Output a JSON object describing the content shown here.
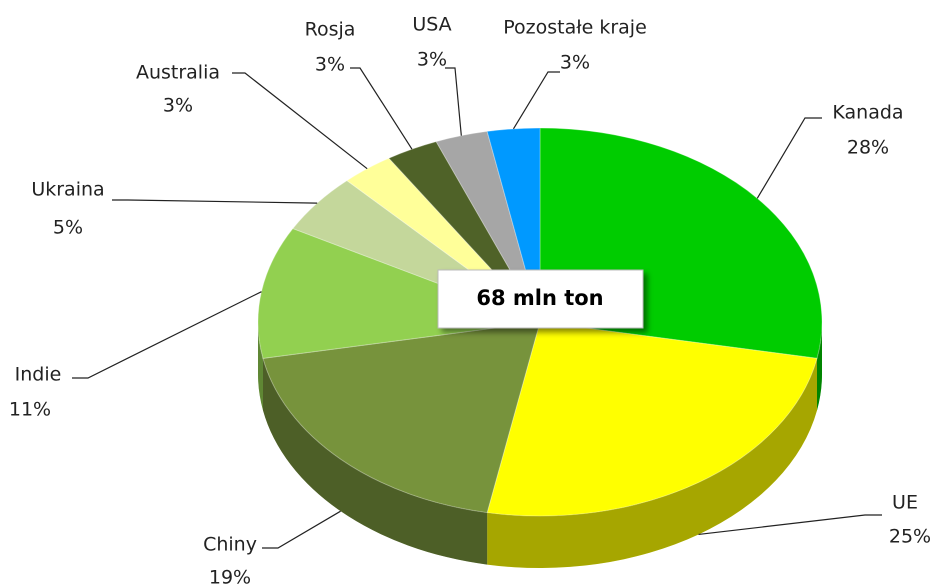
{
  "chart_data": {
    "type": "pie",
    "annotation": "68 mln ton",
    "categories": [
      "Kanada",
      "UE",
      "Chiny",
      "Indie",
      "Ukraina",
      "Australia",
      "Rosja",
      "USA",
      "Pozostałe kraje"
    ],
    "values": [
      28,
      25,
      19,
      11,
      5,
      3,
      3,
      3,
      3
    ],
    "value_labels": [
      "28%",
      "25%",
      "19%",
      "11%",
      "5%",
      "3%",
      "3%",
      "3%",
      "3%"
    ],
    "colors": [
      "#00cc00",
      "#ffff00",
      "#77933c",
      "#92d050",
      "#c4d79b",
      "#ffff99",
      "#4f6228",
      "#a6a6a6",
      "#0099ff"
    ]
  }
}
